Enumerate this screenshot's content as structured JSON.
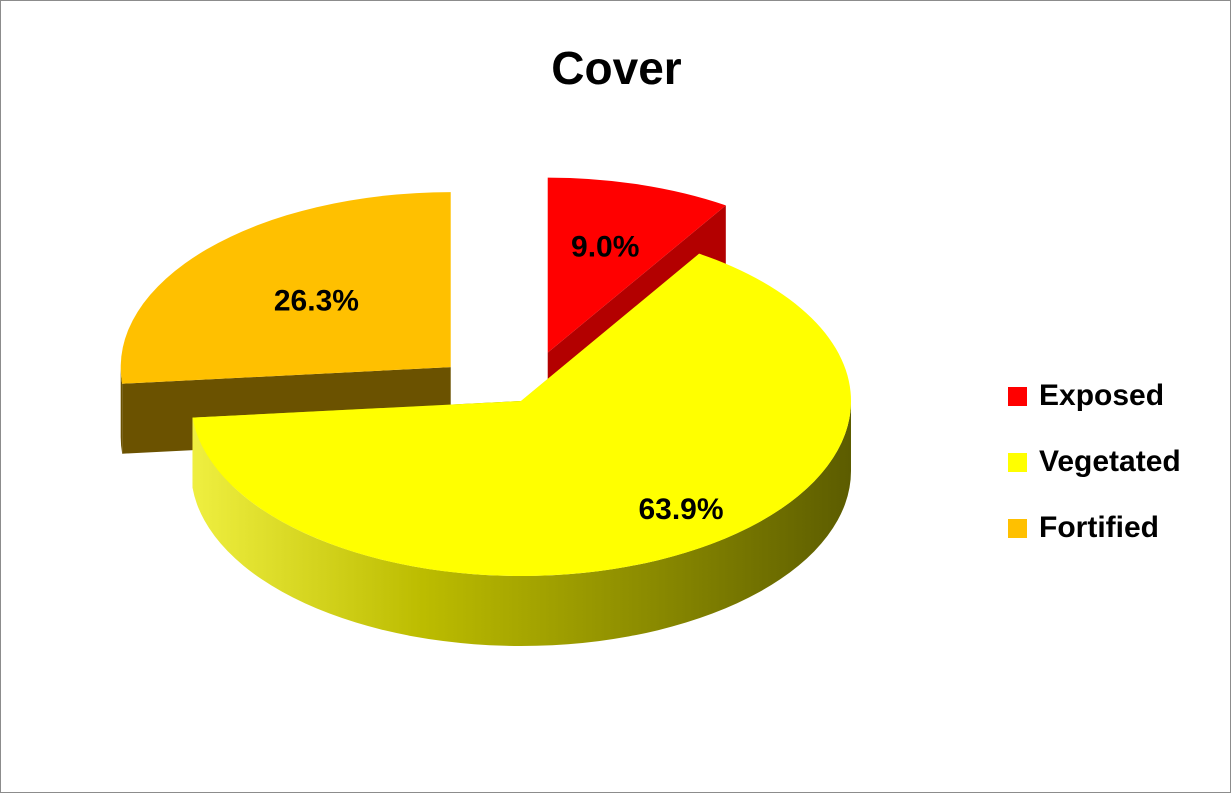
{
  "chart_data": {
    "type": "pie",
    "title": "Cover",
    "categories": [
      "Exposed",
      "Vegetated",
      "Fortified"
    ],
    "values": [
      9.0,
      63.9,
      26.3
    ],
    "labels": [
      "9.0%",
      "63.9%",
      "26.3%"
    ],
    "unit": "%",
    "colors": [
      "#ff0000",
      "#ffff00",
      "#ffc000"
    ],
    "legend_position": "right",
    "exploded": true,
    "style": "3d"
  }
}
